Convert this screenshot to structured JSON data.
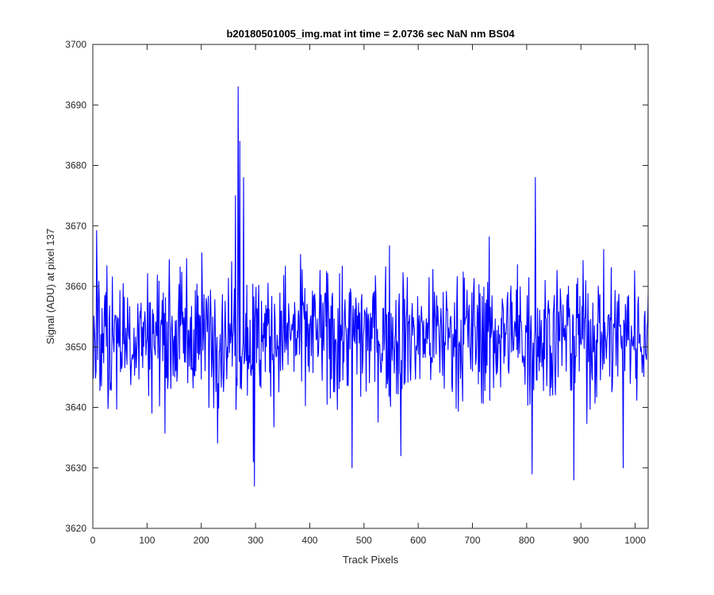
{
  "chart_data": {
    "type": "line",
    "title": "b20180501005_img.mat int time = 2.0736 sec  NaN nm BS04",
    "xlabel": "Track Pixels",
    "ylabel": "Signal (ADU) at pixel 137",
    "xlim": [
      0,
      1024
    ],
    "ylim": [
      3620,
      3700
    ],
    "xticks": [
      0,
      100,
      200,
      300,
      400,
      500,
      600,
      700,
      800,
      900,
      1000
    ],
    "yticks": [
      3620,
      3630,
      3640,
      3650,
      3660,
      3670,
      3680,
      3690,
      3700
    ],
    "grid": false,
    "legend": "none",
    "series": [
      {
        "color": "#0000ff",
        "x": [
          1,
          1024
        ],
        "baseline": 3652,
        "noise_amplitude": 7,
        "notable_points": [
          {
            "x": 268,
            "y": 3693
          },
          {
            "x": 271,
            "y": 3684
          },
          {
            "x": 263,
            "y": 3675
          },
          {
            "x": 278,
            "y": 3678
          },
          {
            "x": 296,
            "y": 3631
          },
          {
            "x": 298,
            "y": 3627
          },
          {
            "x": 810,
            "y": 3629
          },
          {
            "x": 887,
            "y": 3628
          },
          {
            "x": 816,
            "y": 3678
          },
          {
            "x": 478,
            "y": 3630
          },
          {
            "x": 568,
            "y": 3632
          },
          {
            "x": 978,
            "y": 3630
          }
        ]
      }
    ]
  }
}
